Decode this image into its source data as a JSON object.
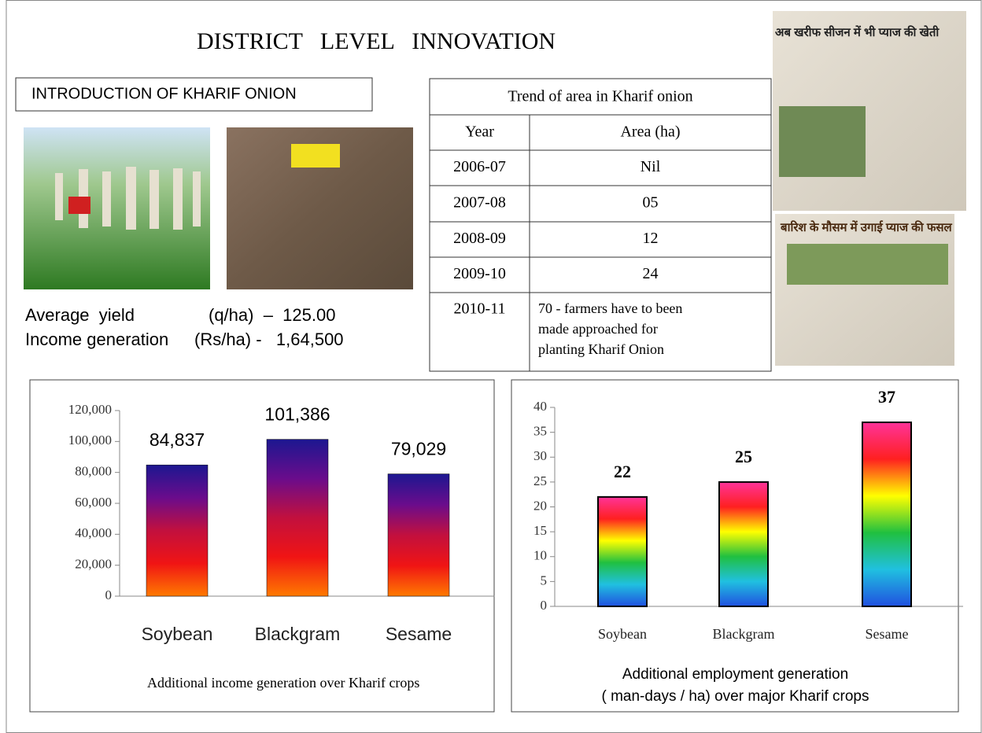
{
  "title": "DISTRICT   LEVEL   INNOVATION",
  "subtitle": "INTRODUCTION OF KHARIF ONION",
  "stats": [
    [
      "Average  yield",
      "(q/ha)  –  125.00"
    ],
    [
      "Income generation",
      "(Rs/ha) -   1,64,500"
    ]
  ],
  "newspapers": [
    "अब खरीफ सीजन में भी प्याज की खेती",
    "बारिश के मौसम में उगाई प्याज की फसल"
  ],
  "table": {
    "title": "Trend of area in Kharif onion",
    "header": [
      "Year",
      "Area (ha)"
    ],
    "rows": [
      [
        "2006-07",
        "Nil"
      ],
      [
        "2007-08",
        "05"
      ],
      [
        "2008-09",
        "12"
      ],
      [
        "2009-10",
        "24"
      ],
      [
        "2010-11",
        [
          "70 - farmers have to been",
          "made approached for",
          "planting Kharif Onion"
        ]
      ]
    ]
  },
  "chart_data": [
    {
      "type": "bar",
      "xlabel": [
        "Additional income generation over Kharif crops"
      ],
      "categories": [
        "Soybean",
        "Blackgram",
        "Sesame"
      ],
      "values": [
        84837,
        101386,
        79029
      ],
      "value_labels": [
        "84,837",
        "101,386",
        "79,029"
      ],
      "colors": [
        "#1c1790",
        "#6a0c8c",
        "#c2103e",
        "#f01414",
        "#ff7a00"
      ],
      "ylim": [
        0,
        120000
      ],
      "yticks": [
        0,
        {
          "value": 20000,
          "label": "20,000"
        },
        {
          "value": 40000,
          "label": "40,000"
        },
        {
          "value": 60000,
          "label": "60,000"
        },
        {
          "value": 80000,
          "label": "80,000"
        },
        {
          "value": 100000,
          "label": "100,000"
        },
        {
          "value": 120000,
          "label": "120,000"
        }
      ]
    },
    {
      "type": "bar",
      "xlabel": [
        "Additional employment generation",
        "( man-days / ha) over major Kharif crops"
      ],
      "categories": [
        "Soybean",
        "Blackgram",
        "Sesame"
      ],
      "values": [
        22,
        25,
        37
      ],
      "colors": [
        "#ff3399",
        "#ff2020",
        "#ffff00",
        "#20c040",
        "#20c0e0",
        "#2050e0"
      ],
      "ylim": [
        0,
        40
      ],
      "yticks": [
        0,
        5,
        10,
        15,
        20,
        25,
        30,
        35,
        40
      ]
    }
  ]
}
